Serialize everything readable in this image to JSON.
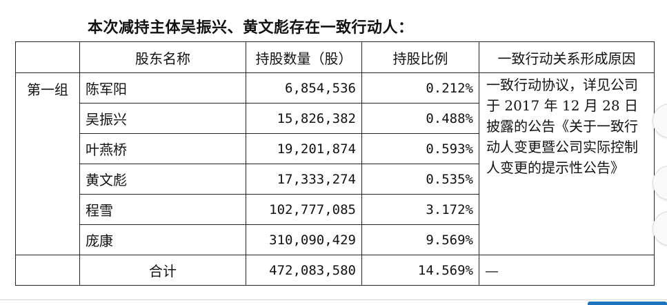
{
  "heading": "本次减持主体吴振兴、黄文彪存在一致行动人：",
  "table": {
    "headers": [
      "股东名称",
      "持股数量（股）",
      "持股比例",
      "一致行动关系形成原因"
    ],
    "group_label": "第一组",
    "rows": [
      {
        "name": "陈军阳",
        "shares": "6,854,536",
        "pct": "0.212%"
      },
      {
        "name": "吴振兴",
        "shares": "15,826,382",
        "pct": "0.488%"
      },
      {
        "name": "叶燕桥",
        "shares": "19,201,874",
        "pct": "0.593%"
      },
      {
        "name": "黄文彪",
        "shares": "17,333,274",
        "pct": "0.535%"
      },
      {
        "name": "程雪",
        "shares": "102,777,085",
        "pct": "3.172%"
      },
      {
        "name": "庞康",
        "shares": "310,090,429",
        "pct": "9.569%"
      }
    ],
    "reason": "一致行动协议，详见公司于 2017 年 12 月 28 日披露的公告《关于一致行动人变更暨公司实际控制人变更的提示性公告》",
    "total": {
      "label": "合计",
      "shares": "472,083,580",
      "pct": "14.569%",
      "reason": "—"
    }
  }
}
